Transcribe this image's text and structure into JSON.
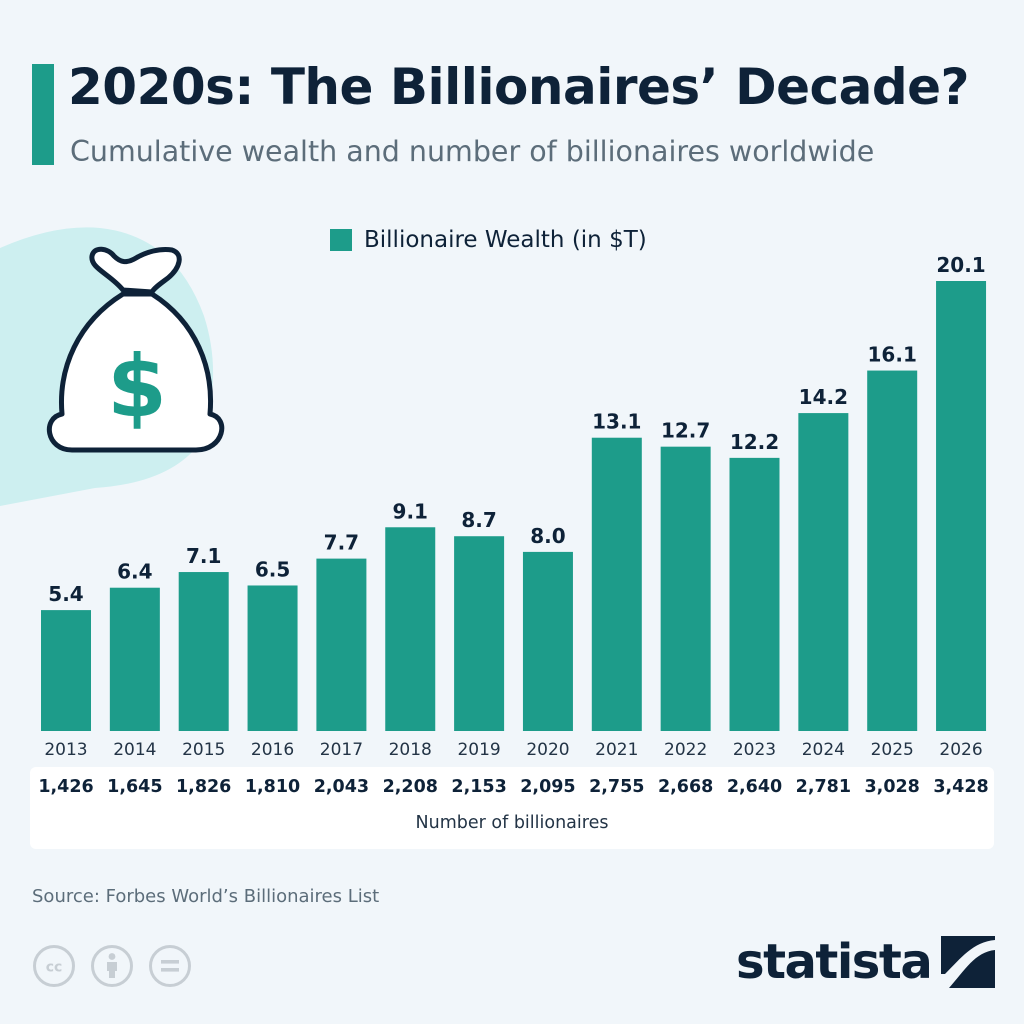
{
  "header": {
    "title": "2020s: The Billionaires’ Decade?",
    "subtitle": "Cumulative wealth and number of billionaires worldwide"
  },
  "colors": {
    "bar": "#1d9c8a",
    "accent": "#1d9c8a",
    "text": "#0e2238",
    "background": "#f1f6fa",
    "decor_blob": "#cdeff0"
  },
  "chart_data": {
    "type": "bar",
    "categories": [
      "2013",
      "2014",
      "2015",
      "2016",
      "2017",
      "2018",
      "2019",
      "2020",
      "2021",
      "2022",
      "2023",
      "2024",
      "2025",
      "2026"
    ],
    "series": [
      {
        "name": "Billionaire Wealth (in $T)",
        "values": [
          5.4,
          6.4,
          7.1,
          6.5,
          7.7,
          9.1,
          8.7,
          8.0,
          13.1,
          12.7,
          12.2,
          14.2,
          16.1,
          20.1
        ]
      }
    ],
    "value_labels": [
      "5.4",
      "6.4",
      "7.1",
      "6.5",
      "7.7",
      "9.1",
      "8.7",
      "8.0",
      "13.1",
      "12.7",
      "12.2",
      "14.2",
      "16.1",
      "20.1"
    ],
    "ylim": [
      0,
      20.1
    ],
    "grid": false,
    "legend": "top-center"
  },
  "billionaires": {
    "title": "Number of billionaires",
    "counts": [
      "1,426",
      "1,645",
      "1,826",
      "1,810",
      "2,043",
      "2,208",
      "2,153",
      "2,095",
      "2,755",
      "2,668",
      "2,640",
      "2,781",
      "3,028",
      "3,428"
    ]
  },
  "icons": {
    "decoration": "money-bag-icon",
    "license": [
      "cc-icon",
      "attribution-icon",
      "no-derivatives-icon"
    ],
    "brand": "statista-logo-icon"
  },
  "footer": {
    "source": "Source: Forbes World’s Billionaires List",
    "brand": "statista"
  }
}
